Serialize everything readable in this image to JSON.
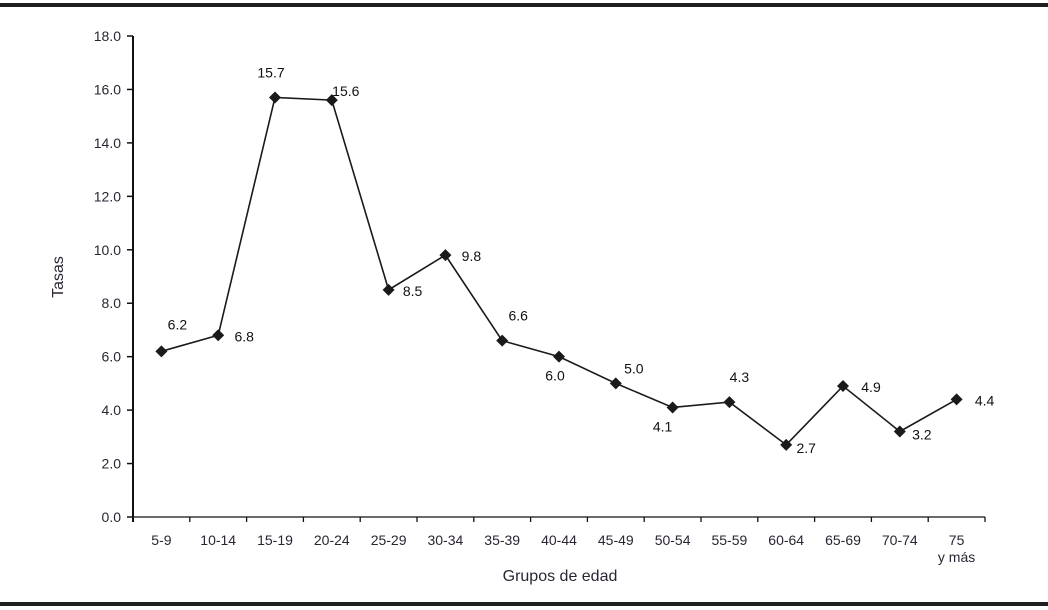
{
  "chart_data": {
    "type": "line",
    "title": "",
    "xlabel": "Grupos de edad",
    "ylabel": "Tasas",
    "ylim": [
      0,
      18
    ],
    "yticks": [
      "0.0",
      "2.0",
      "4.0",
      "6.0",
      "8.0",
      "10.0",
      "12.0",
      "14.0",
      "16.0",
      "18.0"
    ],
    "categories": [
      "5-9",
      "10-14",
      "15-19",
      "20-24",
      "25-29",
      "30-34",
      "35-39",
      "40-44",
      "45-49",
      "50-54",
      "55-59",
      "60-64",
      "65-69",
      "70-74",
      "75 y más"
    ],
    "category_lines": [
      [
        "5-9"
      ],
      [
        "10-14"
      ],
      [
        "15-19"
      ],
      [
        "20-24"
      ],
      [
        "25-29"
      ],
      [
        "30-34"
      ],
      [
        "35-39"
      ],
      [
        "40-44"
      ],
      [
        "45-49"
      ],
      [
        "50-54"
      ],
      [
        "55-59"
      ],
      [
        "60-64"
      ],
      [
        "65-69"
      ],
      [
        "70-74"
      ],
      [
        "75",
        "y más"
      ]
    ],
    "values": [
      6.2,
      6.8,
      15.7,
      15.6,
      8.5,
      9.8,
      6.6,
      6.0,
      5.0,
      4.1,
      4.3,
      2.7,
      4.9,
      3.2,
      4.4
    ],
    "data_labels": [
      "6.2",
      "6.8",
      "15.7",
      "15.6",
      "8.5",
      "9.8",
      "6.6",
      "6.0",
      "5.0",
      "4.1",
      "4.3",
      "2.7",
      "4.9",
      "3.2",
      "4.4"
    ],
    "marker": "diamond",
    "line_color": "#1a1a1a",
    "grid": false,
    "legend": "none"
  }
}
